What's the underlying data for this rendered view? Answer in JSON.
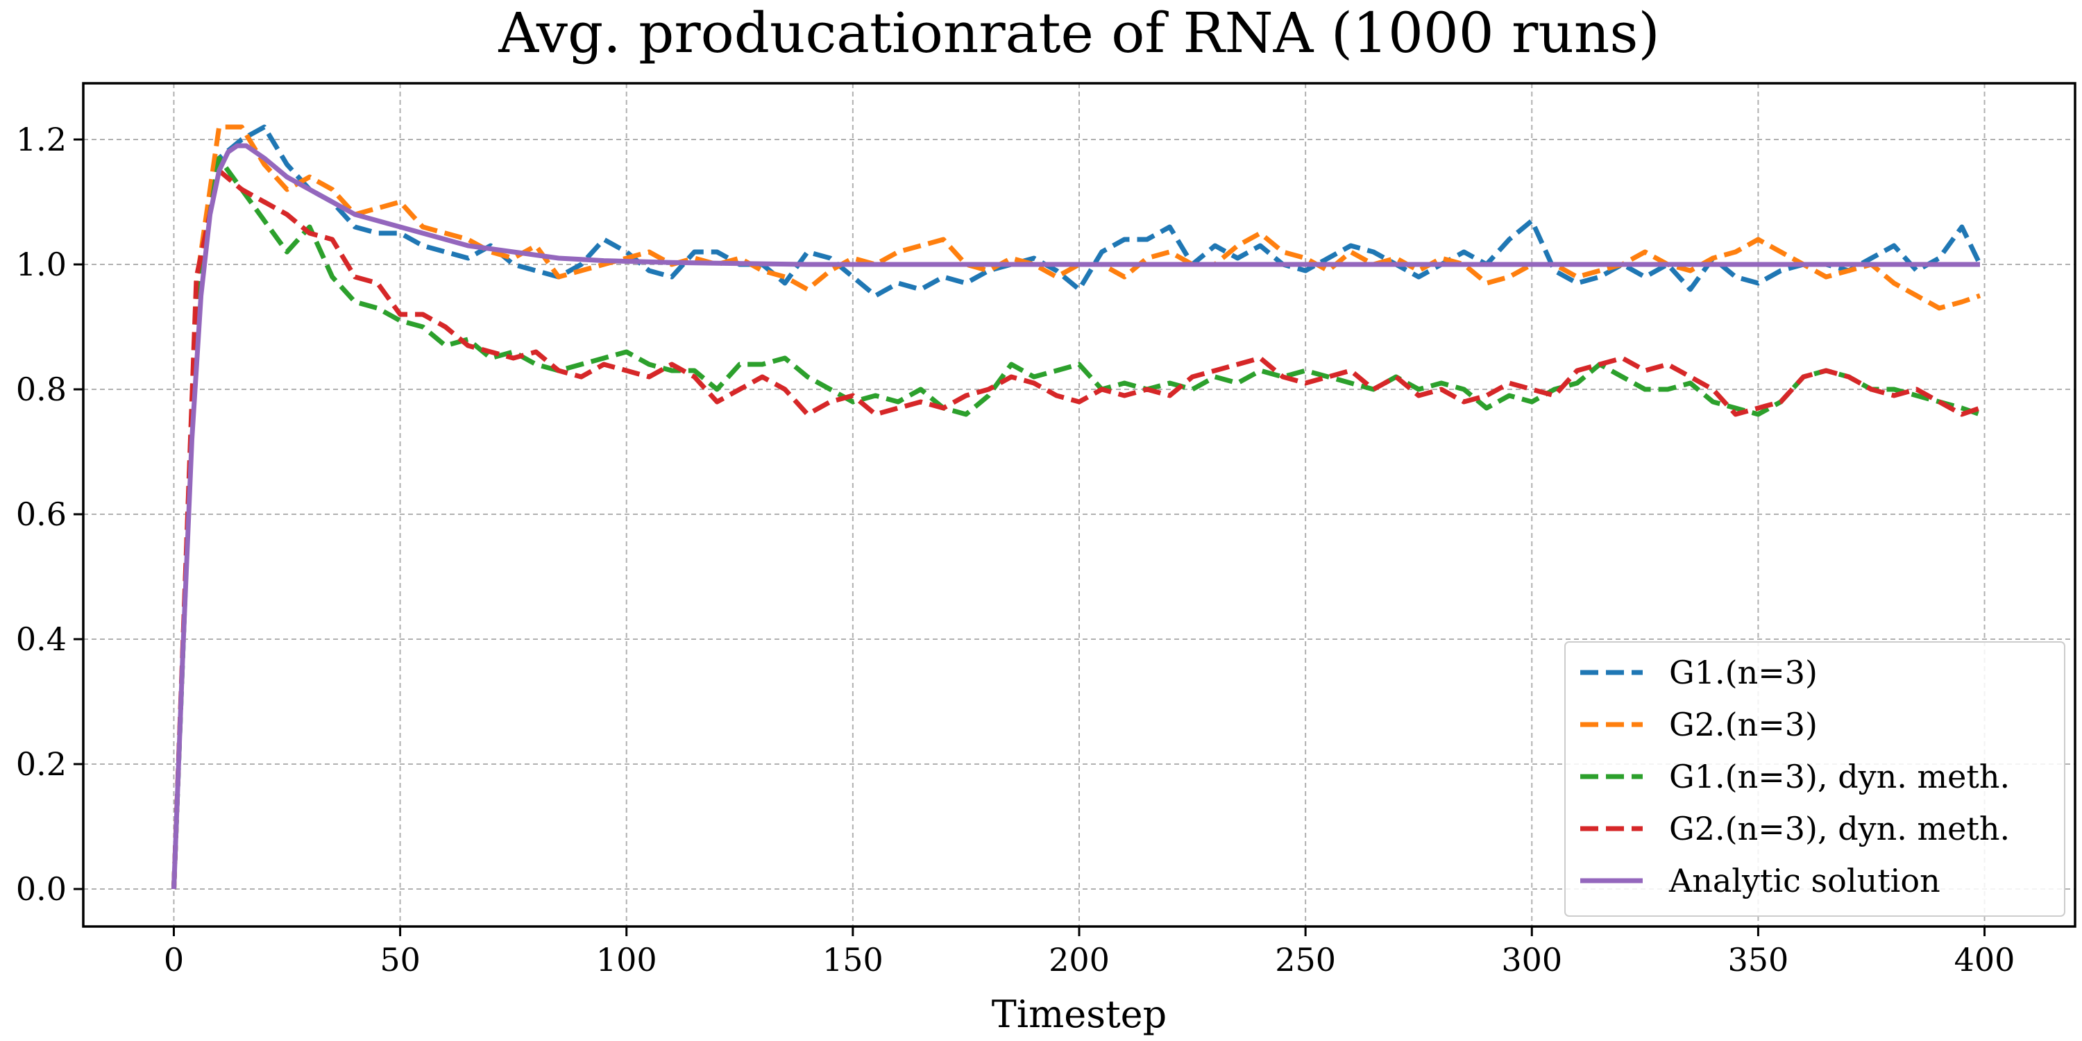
{
  "chart_data": {
    "type": "line",
    "title": "Avg. producationrate of RNA (1000 runs)",
    "xlabel": "Timestep",
    "ylabel": "",
    "xlim": [
      -20,
      420
    ],
    "ylim": [
      -0.06,
      1.29
    ],
    "xticks": [
      0,
      50,
      100,
      150,
      200,
      250,
      300,
      350,
      400
    ],
    "yticks": [
      0.0,
      0.2,
      0.4,
      0.6,
      0.8,
      1.0,
      1.2
    ],
    "xtick_labels": [
      "0",
      "50",
      "100",
      "150",
      "200",
      "250",
      "300",
      "350",
      "400"
    ],
    "ytick_labels": [
      "0.0",
      "0.2",
      "0.4",
      "0.6",
      "0.8",
      "1.0",
      "1.2"
    ],
    "grid": true,
    "legend_position": "bottom-right",
    "series": [
      {
        "name": "G1.(n=3)",
        "color": "#1f77b4",
        "style": "dashed",
        "x": [
          0,
          5,
          10,
          15,
          20,
          25,
          30,
          35,
          40,
          45,
          50,
          55,
          60,
          65,
          70,
          75,
          80,
          85,
          90,
          95,
          100,
          105,
          110,
          115,
          120,
          125,
          130,
          135,
          140,
          145,
          150,
          155,
          160,
          165,
          170,
          175,
          180,
          185,
          190,
          195,
          200,
          205,
          210,
          215,
          220,
          225,
          230,
          235,
          240,
          245,
          250,
          255,
          260,
          265,
          270,
          275,
          280,
          285,
          290,
          295,
          300,
          305,
          310,
          315,
          320,
          325,
          330,
          335,
          340,
          345,
          350,
          355,
          360,
          365,
          370,
          375,
          380,
          385,
          390,
          395,
          399
        ],
        "y": [
          0.0,
          0.95,
          1.17,
          1.2,
          1.22,
          1.16,
          1.12,
          1.1,
          1.06,
          1.05,
          1.05,
          1.03,
          1.02,
          1.01,
          1.03,
          1.0,
          0.99,
          0.98,
          1.0,
          1.04,
          1.02,
          0.99,
          0.98,
          1.02,
          1.02,
          1.0,
          1.0,
          0.97,
          1.02,
          1.01,
          0.98,
          0.95,
          0.97,
          0.96,
          0.98,
          0.97,
          0.99,
          1.0,
          1.01,
          0.99,
          0.96,
          1.02,
          1.04,
          1.04,
          1.06,
          1.0,
          1.03,
          1.01,
          1.03,
          1.0,
          0.99,
          1.01,
          1.03,
          1.02,
          1.0,
          0.98,
          1.0,
          1.02,
          1.0,
          1.04,
          1.07,
          0.99,
          0.97,
          0.98,
          1.0,
          0.98,
          1.0,
          0.96,
          1.01,
          0.98,
          0.97,
          0.99,
          1.0,
          1.0,
          0.99,
          1.01,
          1.03,
          0.99,
          1.01,
          1.06,
          1.0
        ]
      },
      {
        "name": "G2.(n=3)",
        "color": "#ff7f0e",
        "style": "dashed",
        "x": [
          0,
          5,
          10,
          15,
          20,
          25,
          30,
          35,
          40,
          45,
          50,
          55,
          60,
          65,
          70,
          75,
          80,
          85,
          90,
          95,
          100,
          105,
          110,
          115,
          120,
          125,
          130,
          135,
          140,
          145,
          150,
          155,
          160,
          165,
          170,
          175,
          180,
          185,
          190,
          195,
          200,
          205,
          210,
          215,
          220,
          225,
          230,
          235,
          240,
          245,
          250,
          255,
          260,
          265,
          270,
          275,
          280,
          285,
          290,
          295,
          300,
          305,
          310,
          315,
          320,
          325,
          330,
          335,
          340,
          345,
          350,
          355,
          360,
          365,
          370,
          375,
          380,
          385,
          390,
          395,
          399
        ],
        "y": [
          0.0,
          0.97,
          1.22,
          1.22,
          1.16,
          1.12,
          1.14,
          1.12,
          1.08,
          1.09,
          1.1,
          1.06,
          1.05,
          1.04,
          1.02,
          1.01,
          1.03,
          0.98,
          0.99,
          1.0,
          1.01,
          1.02,
          1.0,
          1.01,
          1.0,
          1.01,
          0.99,
          0.98,
          0.96,
          0.99,
          1.01,
          1.0,
          1.02,
          1.03,
          1.04,
          1.0,
          0.99,
          1.01,
          1.0,
          0.98,
          1.0,
          1.0,
          0.98,
          1.01,
          1.02,
          1.0,
          1.0,
          1.03,
          1.05,
          1.02,
          1.01,
          0.99,
          1.02,
          1.0,
          1.01,
          0.99,
          1.01,
          1.0,
          0.97,
          0.98,
          1.0,
          1.0,
          0.98,
          0.99,
          1.0,
          1.02,
          1.0,
          0.99,
          1.01,
          1.02,
          1.04,
          1.02,
          1.0,
          0.98,
          0.99,
          1.0,
          0.97,
          0.95,
          0.93,
          0.94,
          0.95
        ]
      },
      {
        "name": "G1.(n=3), dyn. meth.",
        "color": "#2ca02c",
        "style": "dashed",
        "x": [
          0,
          5,
          10,
          15,
          20,
          25,
          30,
          35,
          40,
          45,
          50,
          55,
          60,
          65,
          70,
          75,
          80,
          85,
          90,
          95,
          100,
          105,
          110,
          115,
          120,
          125,
          130,
          135,
          140,
          145,
          150,
          155,
          160,
          165,
          170,
          175,
          180,
          185,
          190,
          195,
          200,
          205,
          210,
          215,
          220,
          225,
          230,
          235,
          240,
          245,
          250,
          255,
          260,
          265,
          270,
          275,
          280,
          285,
          290,
          295,
          300,
          305,
          310,
          315,
          320,
          325,
          330,
          335,
          340,
          345,
          350,
          355,
          360,
          365,
          370,
          375,
          380,
          385,
          390,
          395,
          399
        ],
        "y": [
          0.0,
          0.95,
          1.17,
          1.12,
          1.07,
          1.02,
          1.06,
          0.98,
          0.94,
          0.93,
          0.91,
          0.9,
          0.87,
          0.88,
          0.85,
          0.86,
          0.84,
          0.83,
          0.84,
          0.85,
          0.86,
          0.84,
          0.83,
          0.83,
          0.8,
          0.84,
          0.84,
          0.85,
          0.82,
          0.8,
          0.78,
          0.79,
          0.78,
          0.8,
          0.77,
          0.76,
          0.79,
          0.84,
          0.82,
          0.83,
          0.84,
          0.8,
          0.81,
          0.8,
          0.81,
          0.8,
          0.82,
          0.81,
          0.83,
          0.82,
          0.83,
          0.82,
          0.81,
          0.8,
          0.82,
          0.8,
          0.81,
          0.8,
          0.77,
          0.79,
          0.78,
          0.8,
          0.81,
          0.84,
          0.82,
          0.8,
          0.8,
          0.81,
          0.78,
          0.77,
          0.76,
          0.78,
          0.82,
          0.83,
          0.82,
          0.8,
          0.8,
          0.79,
          0.78,
          0.77,
          0.76
        ]
      },
      {
        "name": "G2.(n=3), dyn. meth.",
        "color": "#d62728",
        "style": "dashed",
        "x": [
          0,
          5,
          10,
          15,
          20,
          25,
          30,
          35,
          40,
          45,
          50,
          55,
          60,
          65,
          70,
          75,
          80,
          85,
          90,
          95,
          100,
          105,
          110,
          115,
          120,
          125,
          130,
          135,
          140,
          145,
          150,
          155,
          160,
          165,
          170,
          175,
          180,
          185,
          190,
          195,
          200,
          205,
          210,
          215,
          220,
          225,
          230,
          235,
          240,
          245,
          250,
          255,
          260,
          265,
          270,
          275,
          280,
          285,
          290,
          295,
          300,
          305,
          310,
          315,
          320,
          325,
          330,
          335,
          340,
          345,
          350,
          355,
          360,
          365,
          370,
          375,
          380,
          385,
          390,
          395,
          399
        ],
        "y": [
          0.0,
          0.98,
          1.15,
          1.12,
          1.1,
          1.08,
          1.05,
          1.04,
          0.98,
          0.97,
          0.92,
          0.92,
          0.9,
          0.87,
          0.86,
          0.85,
          0.86,
          0.83,
          0.82,
          0.84,
          0.83,
          0.82,
          0.84,
          0.82,
          0.78,
          0.8,
          0.82,
          0.8,
          0.76,
          0.78,
          0.79,
          0.76,
          0.77,
          0.78,
          0.77,
          0.79,
          0.8,
          0.82,
          0.81,
          0.79,
          0.78,
          0.8,
          0.79,
          0.8,
          0.79,
          0.82,
          0.83,
          0.84,
          0.85,
          0.82,
          0.81,
          0.82,
          0.83,
          0.8,
          0.82,
          0.79,
          0.8,
          0.78,
          0.79,
          0.81,
          0.8,
          0.79,
          0.83,
          0.84,
          0.85,
          0.83,
          0.84,
          0.82,
          0.8,
          0.76,
          0.77,
          0.78,
          0.82,
          0.83,
          0.82,
          0.8,
          0.79,
          0.8,
          0.78,
          0.76,
          0.77
        ]
      },
      {
        "name": "Analytic solution",
        "color": "#9467bd",
        "style": "solid",
        "x": [
          0,
          2,
          4,
          6,
          8,
          10,
          12,
          14,
          16,
          18,
          20,
          25,
          30,
          35,
          40,
          45,
          50,
          55,
          60,
          65,
          70,
          75,
          80,
          85,
          90,
          95,
          100,
          110,
          120,
          130,
          140,
          150,
          200,
          250,
          300,
          350,
          399
        ],
        "y": [
          0.0,
          0.38,
          0.72,
          0.95,
          1.08,
          1.15,
          1.18,
          1.19,
          1.19,
          1.18,
          1.17,
          1.14,
          1.12,
          1.1,
          1.08,
          1.07,
          1.06,
          1.05,
          1.04,
          1.03,
          1.025,
          1.02,
          1.015,
          1.01,
          1.008,
          1.006,
          1.005,
          1.003,
          1.002,
          1.001,
          1.0,
          1.0,
          1.0,
          1.0,
          1.0,
          1.0,
          1.0
        ]
      }
    ]
  }
}
